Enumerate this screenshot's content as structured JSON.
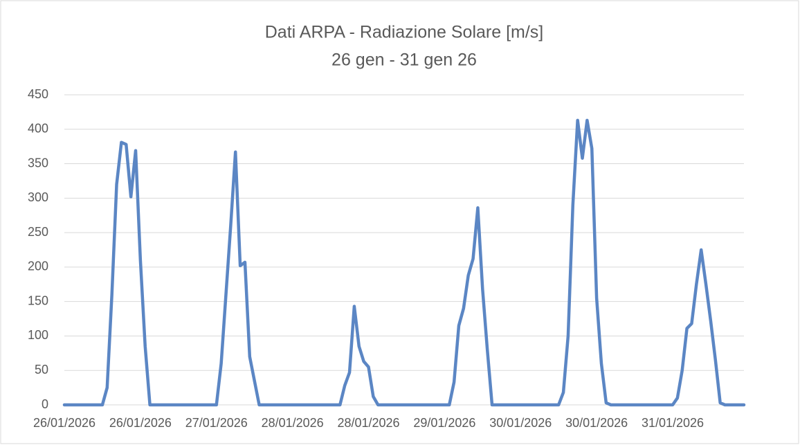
{
  "chart_data": {
    "type": "line",
    "title": "Dati ARPA - Radiazione Solare [m/s]",
    "subtitle": "26 gen - 31 gen 26",
    "categories": [
      "26/01/2026",
      null,
      null,
      null,
      null,
      null,
      null,
      null,
      null,
      null,
      null,
      null,
      null,
      null,
      null,
      null,
      "26/01/2026",
      null,
      null,
      null,
      null,
      null,
      null,
      null,
      null,
      null,
      null,
      null,
      null,
      null,
      null,
      null,
      "27/01/2026",
      null,
      null,
      null,
      null,
      null,
      null,
      null,
      null,
      null,
      null,
      null,
      null,
      null,
      null,
      null,
      "28/01/2026",
      null,
      null,
      null,
      null,
      null,
      null,
      null,
      null,
      null,
      null,
      null,
      null,
      null,
      null,
      null,
      "28/01/2026",
      null,
      null,
      null,
      null,
      null,
      null,
      null,
      null,
      null,
      null,
      null,
      null,
      null,
      null,
      null,
      "29/01/2026",
      null,
      null,
      null,
      null,
      null,
      null,
      null,
      null,
      null,
      null,
      null,
      null,
      null,
      null,
      null,
      "30/01/2026",
      null,
      null,
      null,
      null,
      null,
      null,
      null,
      null,
      null,
      null,
      null,
      null,
      null,
      null,
      null,
      "30/01/2026",
      null,
      null,
      null,
      null,
      null,
      null,
      null,
      null,
      null,
      null,
      null,
      null,
      null,
      null,
      null,
      "31/01/2026",
      null,
      null,
      null,
      null,
      null,
      null,
      null,
      null,
      null,
      null,
      null,
      null,
      null,
      null,
      null
    ],
    "series": [
      {
        "name": "Radiazione Solare",
        "color": "#5b86c4",
        "values": [
          0,
          0,
          0,
          0,
          0,
          0,
          0,
          0,
          0,
          25,
          160,
          320,
          381,
          378,
          302,
          369,
          210,
          85,
          0,
          0,
          0,
          0,
          0,
          0,
          0,
          0,
          0,
          0,
          0,
          0,
          0,
          0,
          0,
          60,
          160,
          260,
          367,
          202,
          207,
          70,
          35,
          0,
          0,
          0,
          0,
          0,
          0,
          0,
          0,
          0,
          0,
          0,
          0,
          0,
          0,
          0,
          0,
          0,
          0,
          28,
          47,
          143,
          85,
          63,
          55,
          12,
          0,
          0,
          0,
          0,
          0,
          0,
          0,
          0,
          0,
          0,
          0,
          0,
          0,
          0,
          0,
          0,
          33,
          115,
          140,
          188,
          212,
          286,
          168,
          80,
          0,
          0,
          0,
          0,
          0,
          0,
          0,
          0,
          0,
          0,
          0,
          0,
          0,
          0,
          0,
          18,
          100,
          290,
          413,
          358,
          413,
          372,
          155,
          60,
          3,
          0,
          0,
          0,
          0,
          0,
          0,
          0,
          0,
          0,
          0,
          0,
          0,
          0,
          0,
          10,
          50,
          111,
          118,
          175,
          225,
          175,
          122,
          65,
          3,
          0,
          0,
          0,
          0,
          0
        ]
      }
    ],
    "ylim": [
      0,
      450
    ],
    "yticks": [
      0,
      50,
      100,
      150,
      200,
      250,
      300,
      350,
      400,
      450
    ],
    "grid": true
  }
}
